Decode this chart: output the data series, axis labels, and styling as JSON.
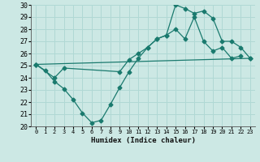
{
  "xlabel": "Humidex (Indice chaleur)",
  "bg_color": "#cce8e4",
  "grid_color": "#b0d8d4",
  "line_color": "#1a7a6e",
  "xlim": [
    -0.5,
    23.5
  ],
  "ylim": [
    20,
    30
  ],
  "xticks": [
    0,
    1,
    2,
    3,
    4,
    5,
    6,
    7,
    8,
    9,
    10,
    11,
    12,
    13,
    14,
    15,
    16,
    17,
    18,
    19,
    20,
    21,
    22,
    23
  ],
  "yticks": [
    20,
    21,
    22,
    23,
    24,
    25,
    26,
    27,
    28,
    29,
    30
  ],
  "line1_x": [
    0,
    1,
    2,
    3,
    4,
    5,
    6,
    7,
    8,
    9,
    10,
    11,
    12,
    13,
    14,
    15,
    16,
    17,
    18,
    19,
    20,
    21,
    22
  ],
  "line1_y": [
    25.1,
    24.6,
    23.7,
    23.1,
    22.2,
    21.1,
    20.3,
    20.5,
    21.8,
    23.2,
    24.5,
    25.6,
    26.5,
    27.2,
    27.5,
    28.0,
    27.2,
    29.0,
    27.0,
    26.2,
    26.5,
    25.6,
    25.8
  ],
  "line2_x": [
    0,
    2,
    3,
    9,
    10,
    11,
    12,
    13,
    14,
    15,
    16,
    17,
    18,
    19,
    20,
    21,
    22,
    23
  ],
  "line2_y": [
    25.1,
    24.0,
    24.8,
    24.5,
    25.5,
    26.0,
    26.5,
    27.2,
    27.5,
    30.0,
    29.7,
    29.3,
    29.5,
    28.9,
    27.0,
    27.0,
    26.5,
    25.6
  ],
  "line3_x": [
    0,
    23
  ],
  "line3_y": [
    25.1,
    25.6
  ]
}
